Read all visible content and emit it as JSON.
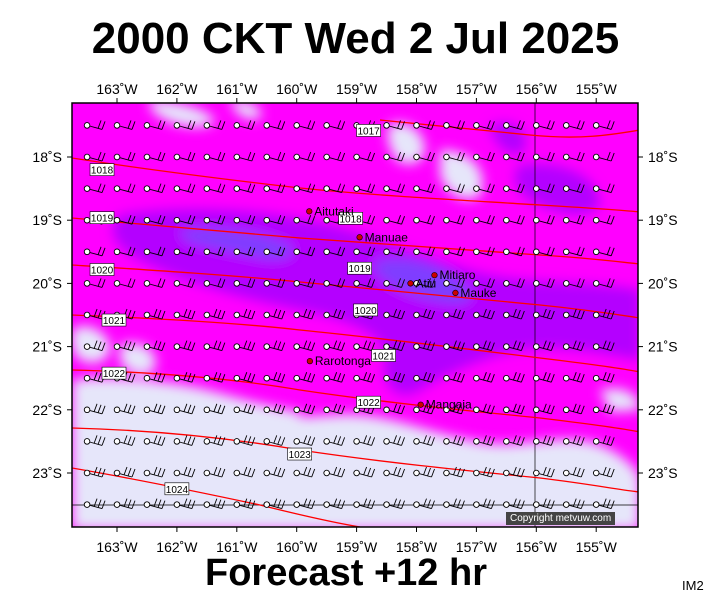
{
  "title": "2000 CKT Wed 2 Jul 2025",
  "footer": "Forecast +12 hr",
  "corner_label": "IM2",
  "copyright": "Copyright metvuw.com",
  "colors": {
    "background_high": "#ff00ff",
    "background_low": "#e6e6fa",
    "rain_medium": "#b400ff",
    "rain_heavy": "#7f3cff",
    "isobar": "#ff0000",
    "place_marker": "#cc0000"
  },
  "axes": {
    "lon_labels": [
      "163˚W",
      "162˚W",
      "161˚W",
      "160˚W",
      "159˚W",
      "158˚W",
      "157˚W",
      "156˚W",
      "155˚W"
    ],
    "lat_labels": [
      "18˚S",
      "19˚S",
      "20˚S",
      "21˚S",
      "22˚S",
      "23˚S"
    ]
  },
  "places": [
    {
      "name": "Aitutaki",
      "lon": -159.79,
      "lat": -18.86
    },
    {
      "name": "Manuae",
      "lon": -158.95,
      "lat": -19.27
    },
    {
      "name": "Mitiaro",
      "lon": -157.7,
      "lat": -19.87
    },
    {
      "name": "Atiu",
      "lon": -158.1,
      "lat": -20.0
    },
    {
      "name": "Mauke",
      "lon": -157.35,
      "lat": -20.15
    },
    {
      "name": "Rarotonga",
      "lon": -159.78,
      "lat": -21.23
    },
    {
      "name": "Mangaia",
      "lon": -157.93,
      "lat": -21.92
    }
  ],
  "isobar_labels": [
    {
      "text": "1017",
      "lon": -158.8,
      "lat": -17.58
    },
    {
      "text": "1018",
      "lon": -163.25,
      "lat": -18.2
    },
    {
      "text": "1018",
      "lon": -159.1,
      "lat": -18.97
    },
    {
      "text": "1019",
      "lon": -163.25,
      "lat": -18.96
    },
    {
      "text": "1019",
      "lon": -158.95,
      "lat": -19.76
    },
    {
      "text": "1020",
      "lon": -163.25,
      "lat": -19.78
    },
    {
      "text": "1020",
      "lon": -158.85,
      "lat": -20.42
    },
    {
      "text": "1021",
      "lon": -163.05,
      "lat": -20.58
    },
    {
      "text": "1021",
      "lon": -158.55,
      "lat": -21.14
    },
    {
      "text": "1022",
      "lon": -163.05,
      "lat": -21.42
    },
    {
      "text": "1022",
      "lon": -158.8,
      "lat": -21.88
    },
    {
      "text": "1023",
      "lon": -159.95,
      "lat": -22.7
    },
    {
      "text": "1024",
      "lon": -162.0,
      "lat": -23.25
    }
  ]
}
